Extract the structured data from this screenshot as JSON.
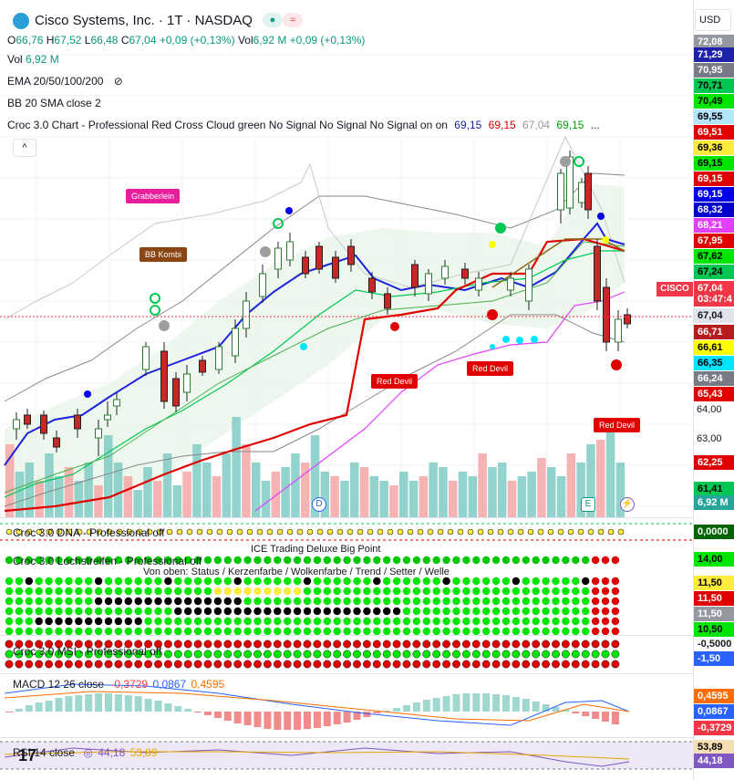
{
  "header": {
    "title": "Cisco Systems, Inc. · 1T · NASDAQ",
    "ohlc": [
      {
        "k": "O",
        "v": "66,76"
      },
      {
        "k": "H",
        "v": "67,52"
      },
      {
        "k": "L",
        "v": "66,48"
      },
      {
        "k": "C",
        "v": "67,04"
      }
    ],
    "change": "+0,09 (+0,13%)",
    "vol_label": "Vol",
    "vol_value": "6,92 M",
    "vol_change": "+0,09 (+0,13%)"
  },
  "indicators": {
    "vol": {
      "label": "Vol",
      "value": "6,92 M"
    },
    "ema": "EMA 20/50/100/200",
    "bb": "BB 20 SMA close 2",
    "croc": "Croc 3.0 Chart - Professional Red Cross Cloud green No Signal No Signal No Signal on on",
    "croc_values": [
      "69,15",
      "69,15",
      "67,04",
      "69,15"
    ],
    "croc_more": "...",
    "collapse": "^"
  },
  "price_axis": {
    "currency": "USD",
    "labels": [
      {
        "t": "72,08",
        "bg": "#9598a1",
        "c": "#fff"
      },
      {
        "t": "71,29",
        "bg": "#1e22aa",
        "c": "#fff"
      },
      {
        "t": "70,95",
        "bg": "#787b86",
        "c": "#fff"
      },
      {
        "t": "70,71",
        "bg": "#00c853",
        "c": "#000"
      },
      {
        "t": "70,49",
        "bg": "#00e600",
        "c": "#000"
      },
      {
        "t": "69,55",
        "bg": "#b3e5fc",
        "c": "#000"
      },
      {
        "t": "69,51",
        "bg": "#e00000",
        "c": "#fff"
      },
      {
        "t": "69,36",
        "bg": "#ffeb3b",
        "c": "#000"
      },
      {
        "t": "69,15",
        "bg": "#00e600",
        "c": "#000"
      },
      {
        "t": "69,15",
        "bg": "#e00000",
        "c": "#fff"
      },
      {
        "t": "69,15",
        "bg": "#0000e6",
        "c": "#fff"
      },
      {
        "t": "68,32",
        "bg": "#0000cc",
        "c": "#fff"
      },
      {
        "t": "68,21",
        "bg": "#e040fb",
        "c": "#fff"
      },
      {
        "t": "67,95",
        "bg": "#e00000",
        "c": "#fff"
      },
      {
        "t": "67,62",
        "bg": "#00e600",
        "c": "#000"
      },
      {
        "t": "67,24",
        "bg": "#00c853",
        "c": "#000"
      },
      {
        "t": "67,04",
        "bg": "#f23645",
        "c": "#fff"
      },
      {
        "t": "03:47:4",
        "bg": "#f23645",
        "c": "#fff"
      },
      {
        "t": "67,04",
        "bg": "#e0e3eb",
        "c": "#131722"
      },
      {
        "t": "66,71",
        "bg": "#b71c1c",
        "c": "#fff"
      },
      {
        "t": "66,61",
        "bg": "#ffff00",
        "c": "#000"
      },
      {
        "t": "66,35",
        "bg": "#00e5ff",
        "c": "#000"
      },
      {
        "t": "66,24",
        "bg": "#787b86",
        "c": "#fff"
      },
      {
        "t": "65,43",
        "bg": "#e00000",
        "c": "#fff"
      }
    ],
    "ticks": [
      "64,00",
      "63,00"
    ],
    "lower_labels": [
      {
        "t": "62,25",
        "bg": "#e00000",
        "c": "#fff"
      },
      {
        "t": "61,41",
        "bg": "#00c853",
        "c": "#000"
      },
      {
        "t": "6,92 M",
        "bg": "#26a69a",
        "c": "#fff"
      },
      {
        "t": "0,0000",
        "bg": "#006400",
        "c": "#fff"
      },
      {
        "t": "14,00",
        "bg": "#00e600",
        "c": "#000"
      },
      {
        "t": "11,50",
        "bg": "#ffeb3b",
        "c": "#000"
      },
      {
        "t": "11,50",
        "bg": "#e00000",
        "c": "#fff"
      },
      {
        "t": "11,50",
        "bg": "#9598a1",
        "c": "#fff"
      },
      {
        "t": "10,50",
        "bg": "#00e600",
        "c": "#000"
      },
      {
        "t": "-0,5000",
        "bg": "#ffffff",
        "c": "#131722"
      },
      {
        "t": "-1,50",
        "bg": "#2962ff",
        "c": "#fff"
      },
      {
        "t": "0,4595",
        "bg": "#ff6d00",
        "c": "#fff"
      },
      {
        "t": "0,0867",
        "bg": "#2962ff",
        "c": "#fff"
      },
      {
        "t": "-0,3729",
        "bg": "#f23645",
        "c": "#fff"
      },
      {
        "t": "53,89",
        "bg": "#f5deb3",
        "c": "#000"
      },
      {
        "t": "44,18",
        "bg": "#7e57c2",
        "c": "#fff"
      }
    ]
  },
  "symbol_badge": "CISCO",
  "annotations": {
    "grabberlein": "Grabberlein",
    "bbkombi": "BB Kombi",
    "reddevil": "Red Devil"
  },
  "events": {
    "d": "D",
    "e": "E",
    "f": "⚡"
  },
  "panels": {
    "dna": "Croc 3.0 DNA - Professional off",
    "ice": "ICE Trading Deluxe Big Point",
    "loch": "Croc 3.0 Lochstreifen - Professional off",
    "loch_sub": "Von oben: Status / Kerzenfarbe / Wolkenfarbe / Trend / Setter / Welle",
    "msi": "Croc 3.0 MSI - Professional off",
    "macd": "MACD 12 26 close",
    "macd_vals": [
      "-0,3729",
      "0,0867",
      "0,4595"
    ],
    "rsi": "RSI 14 close",
    "rsi_vals": [
      "44,18",
      "53,89"
    ]
  },
  "colors": {
    "up": "#089981",
    "down": "#f23645",
    "accent": "#2962ff"
  }
}
